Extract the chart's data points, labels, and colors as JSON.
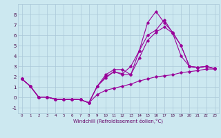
{
  "xlabel": "Windchill (Refroidissement éolien,°C)",
  "background_color": "#cce8f0",
  "grid_color": "#aac8d8",
  "line_color": "#990099",
  "xlim": [
    -0.5,
    23.5
  ],
  "ylim": [
    -1.5,
    9.0
  ],
  "xticks": [
    0,
    1,
    2,
    3,
    4,
    5,
    6,
    7,
    8,
    9,
    10,
    11,
    12,
    13,
    14,
    15,
    16,
    17,
    18,
    19,
    20,
    21,
    22,
    23
  ],
  "yticks": [
    -1,
    0,
    1,
    2,
    3,
    4,
    5,
    6,
    7,
    8
  ],
  "line1_x": [
    0,
    1,
    2,
    3,
    4,
    5,
    6,
    7,
    8,
    9,
    10,
    11,
    12,
    13,
    14,
    15,
    16,
    17,
    18,
    19,
    20,
    21,
    22,
    23
  ],
  "line1_y": [
    1.8,
    1.1,
    0.05,
    0.05,
    -0.15,
    -0.2,
    -0.15,
    -0.2,
    -0.5,
    0.3,
    0.7,
    0.9,
    1.1,
    1.3,
    1.6,
    1.8,
    2.0,
    2.1,
    2.2,
    2.4,
    2.5,
    2.6,
    2.75,
    2.75
  ],
  "line2_x": [
    0,
    1,
    2,
    3,
    4,
    5,
    6,
    7,
    8,
    9,
    10,
    11,
    12,
    13,
    14,
    15,
    16,
    17,
    18,
    19,
    20,
    21,
    22,
    23
  ],
  "line2_y": [
    1.8,
    1.1,
    0.05,
    0.05,
    -0.15,
    -0.2,
    -0.15,
    -0.2,
    -0.5,
    1.1,
    1.9,
    2.5,
    2.2,
    2.2,
    3.8,
    5.5,
    6.3,
    6.8,
    6.2,
    5.0,
    3.0,
    2.9,
    3.0,
    2.8
  ],
  "line3_x": [
    0,
    1,
    2,
    3,
    4,
    5,
    6,
    7,
    8,
    9,
    10,
    11,
    12,
    13,
    14,
    15,
    16,
    17,
    18,
    19,
    20,
    21,
    22,
    23
  ],
  "line3_y": [
    1.8,
    1.1,
    0.05,
    0.05,
    -0.15,
    -0.2,
    -0.15,
    -0.2,
    -0.5,
    1.1,
    2.2,
    2.7,
    2.7,
    2.2,
    4.5,
    7.2,
    8.3,
    7.2,
    6.3,
    5.0,
    3.0,
    2.9,
    3.0,
    2.8
  ],
  "line4_x": [
    0,
    1,
    2,
    3,
    4,
    5,
    6,
    7,
    8,
    9,
    10,
    11,
    12,
    13,
    14,
    15,
    16,
    17,
    18,
    19,
    20,
    21,
    22,
    23
  ],
  "line4_y": [
    1.8,
    1.1,
    0.05,
    0.05,
    -0.15,
    -0.2,
    -0.15,
    -0.2,
    -0.5,
    1.1,
    2.0,
    2.5,
    2.3,
    3.0,
    4.5,
    6.0,
    6.5,
    7.5,
    6.2,
    4.0,
    3.0,
    2.9,
    3.0,
    2.8
  ]
}
